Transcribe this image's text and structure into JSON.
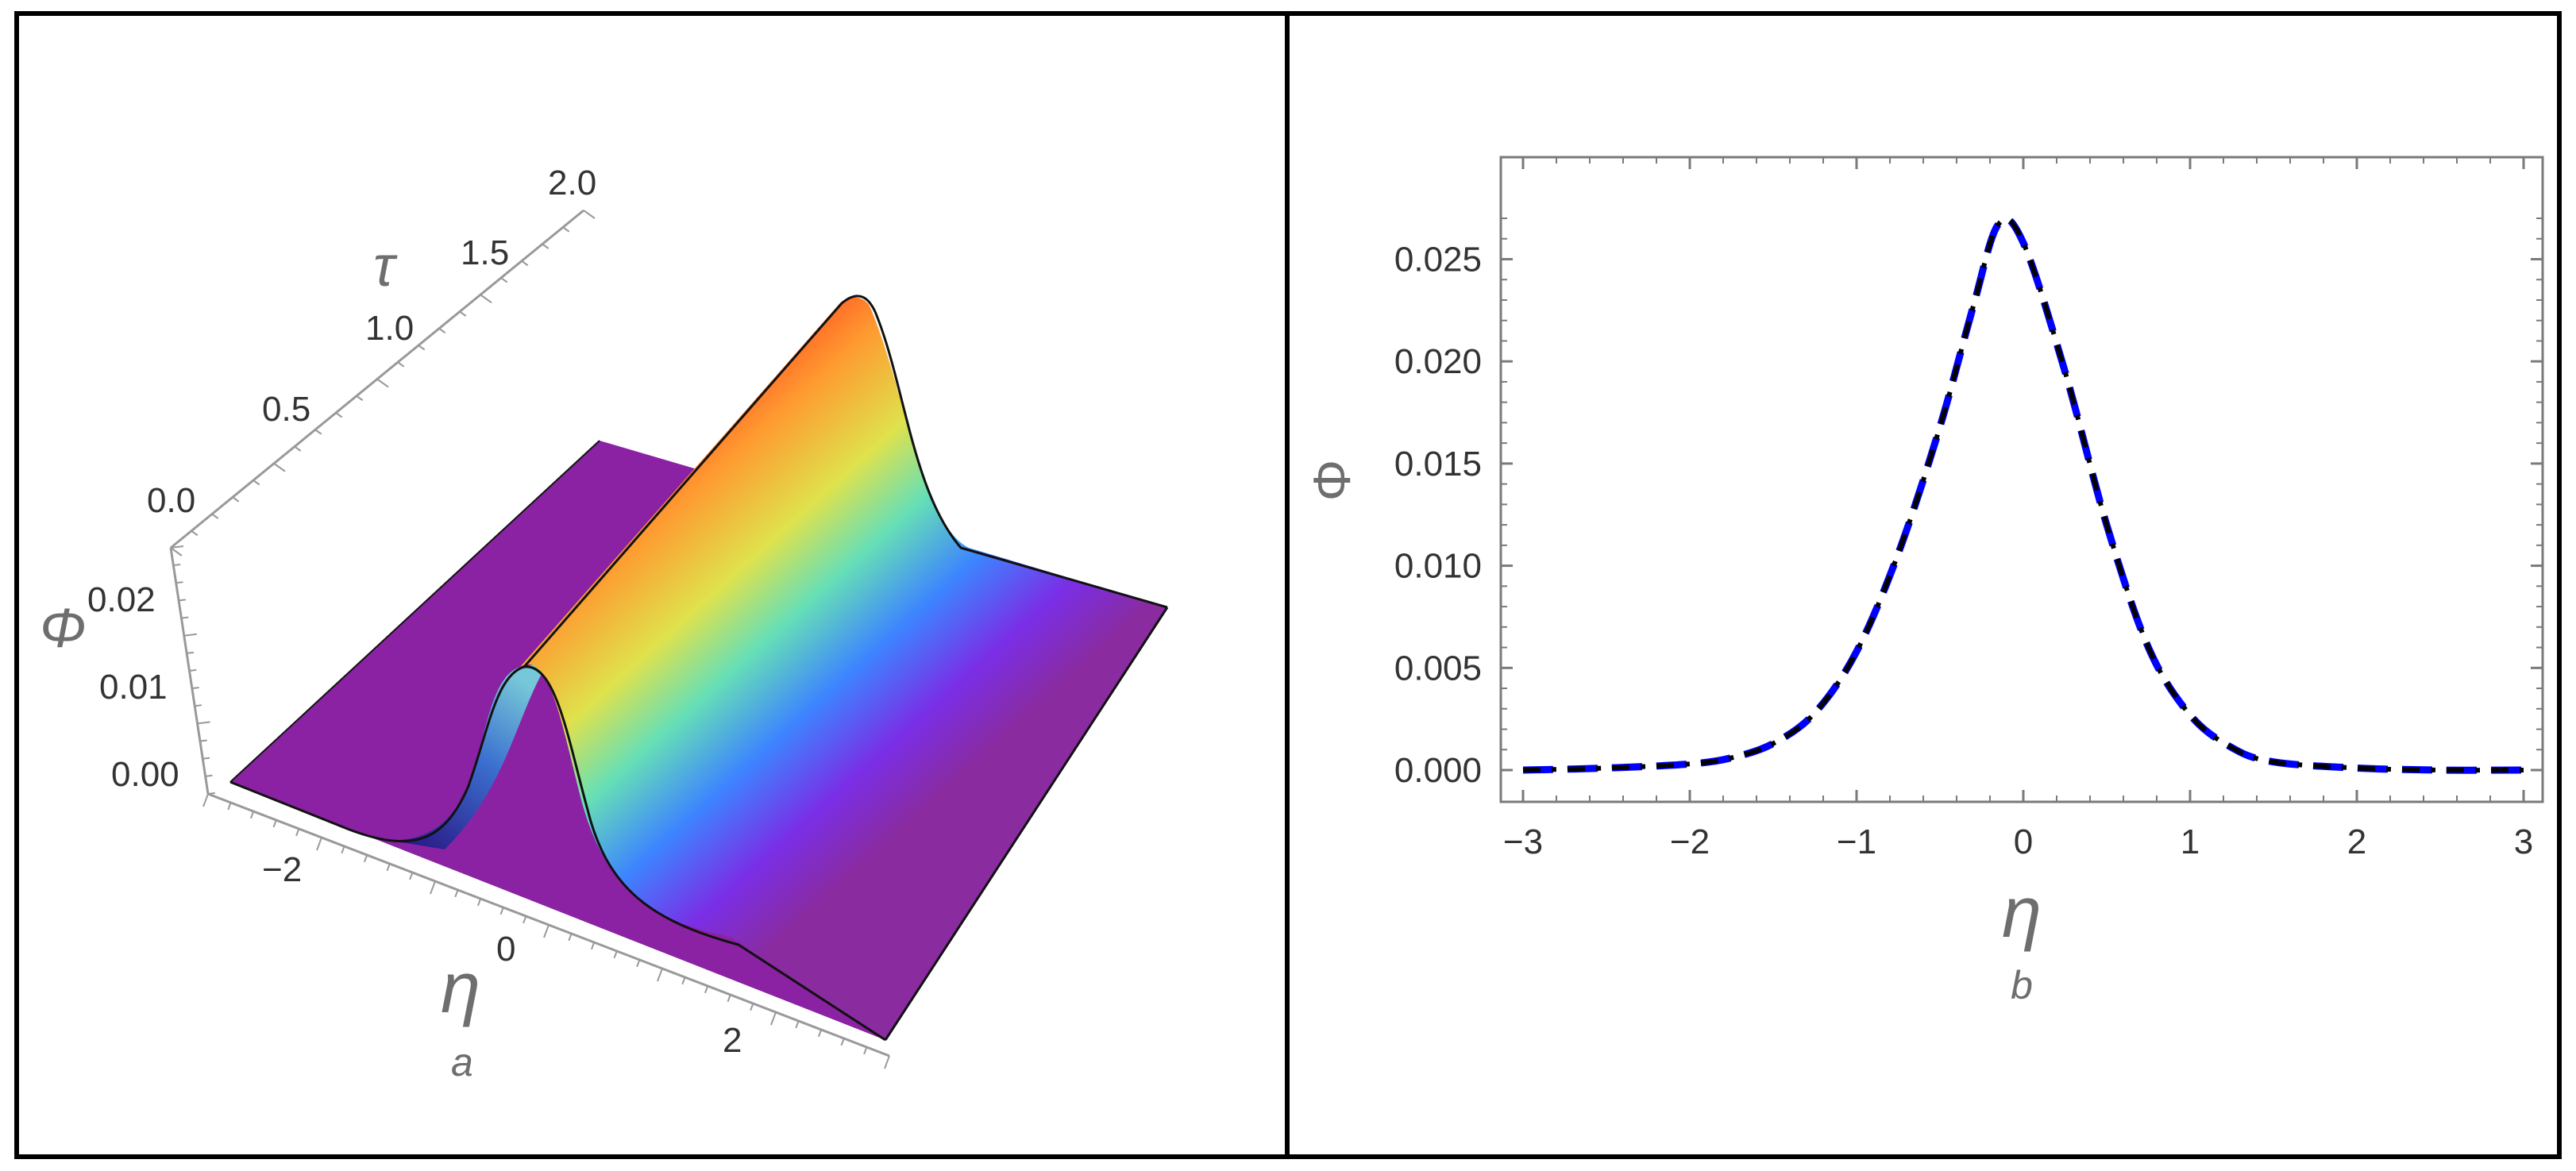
{
  "panels": [
    {
      "id": "a",
      "caption": "a",
      "type": "surface3d",
      "axes": {
        "x_label": "η",
        "y_label": "τ",
        "z_label": "Φ",
        "x_ticks": [
          "−2",
          "0",
          "2"
        ],
        "y_ticks": [
          "0.0",
          "0.5",
          "1.0",
          "1.5",
          "2.0"
        ],
        "z_ticks": [
          "0.00",
          "0.01",
          "0.02"
        ]
      }
    },
    {
      "id": "b",
      "caption": "b",
      "type": "line",
      "axes": {
        "x_label": "η",
        "y_label": "Φ",
        "x_ticks": [
          "−3",
          "−2",
          "−1",
          "0",
          "1",
          "2",
          "3"
        ],
        "y_ticks": [
          "0.000",
          "0.005",
          "0.010",
          "0.015",
          "0.020",
          "0.025"
        ]
      }
    }
  ],
  "chart_data": [
    {
      "type": "surface3d",
      "xlabel": "η",
      "ylabel": "τ",
      "zlabel": "Φ",
      "xlim": [
        -3,
        3
      ],
      "ylim": [
        0,
        2
      ],
      "zlim": [
        0,
        0.027
      ],
      "peak_amplitude": 0.0267,
      "colormap": "rainbow",
      "colors": [
        "#2b1e8e",
        "#3b7bff",
        "#6fe0c2",
        "#e8e24a",
        "#ff9a2a",
        "#ff2a1a"
      ]
    },
    {
      "type": "line",
      "xlabel": "η",
      "ylabel": "Φ",
      "xlim": [
        -3,
        3
      ],
      "ylim": [
        0,
        0.027
      ],
      "series": [
        {
          "style": "dashed",
          "color": "#0000ff",
          "x": [
            -3.0,
            -2.5,
            -2.0,
            -1.75,
            -1.5,
            -1.25,
            -1.0,
            -0.75,
            -0.5,
            -0.3,
            -0.15,
            0.0,
            0.25,
            0.5,
            0.75,
            1.0,
            1.25,
            1.5,
            2.0,
            2.5,
            3.0
          ],
          "y": [
            0.0,
            0.0001,
            0.0003,
            0.0006,
            0.0013,
            0.0028,
            0.0058,
            0.0106,
            0.0168,
            0.0227,
            0.0267,
            0.0258,
            0.0195,
            0.012,
            0.006,
            0.0027,
            0.0011,
            0.0004,
            0.0001,
            0.0,
            0.0
          ]
        },
        {
          "style": "dash-dot",
          "color": "#000000",
          "x": [
            -3.0,
            -2.5,
            -2.0,
            -1.75,
            -1.5,
            -1.25,
            -1.0,
            -0.75,
            -0.5,
            -0.3,
            -0.15,
            0.0,
            0.25,
            0.5,
            0.75,
            1.0,
            1.25,
            1.5,
            2.0,
            2.5,
            3.0
          ],
          "y": [
            0.0,
            0.0001,
            0.0003,
            0.0006,
            0.0013,
            0.0028,
            0.0058,
            0.0106,
            0.0168,
            0.0227,
            0.0267,
            0.0258,
            0.0195,
            0.012,
            0.006,
            0.0027,
            0.0011,
            0.0004,
            0.0001,
            0.0,
            0.0
          ]
        }
      ]
    }
  ]
}
